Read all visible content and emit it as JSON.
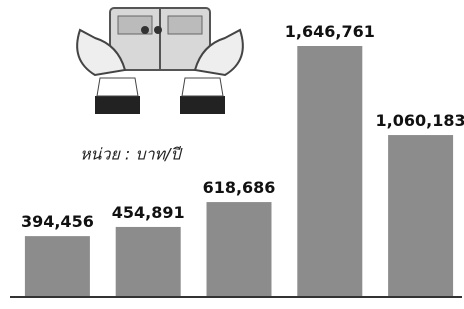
{
  "chart_data": {
    "type": "bar",
    "annotation": "หน่วย : บาท/ปี",
    "values": [
      394456,
      454891,
      618686,
      1646761,
      1060183
    ],
    "value_labels": [
      "394,456",
      "454,891",
      "618,686",
      "1,646,761",
      "1,060,183"
    ],
    "color": "#8c8c8c"
  }
}
